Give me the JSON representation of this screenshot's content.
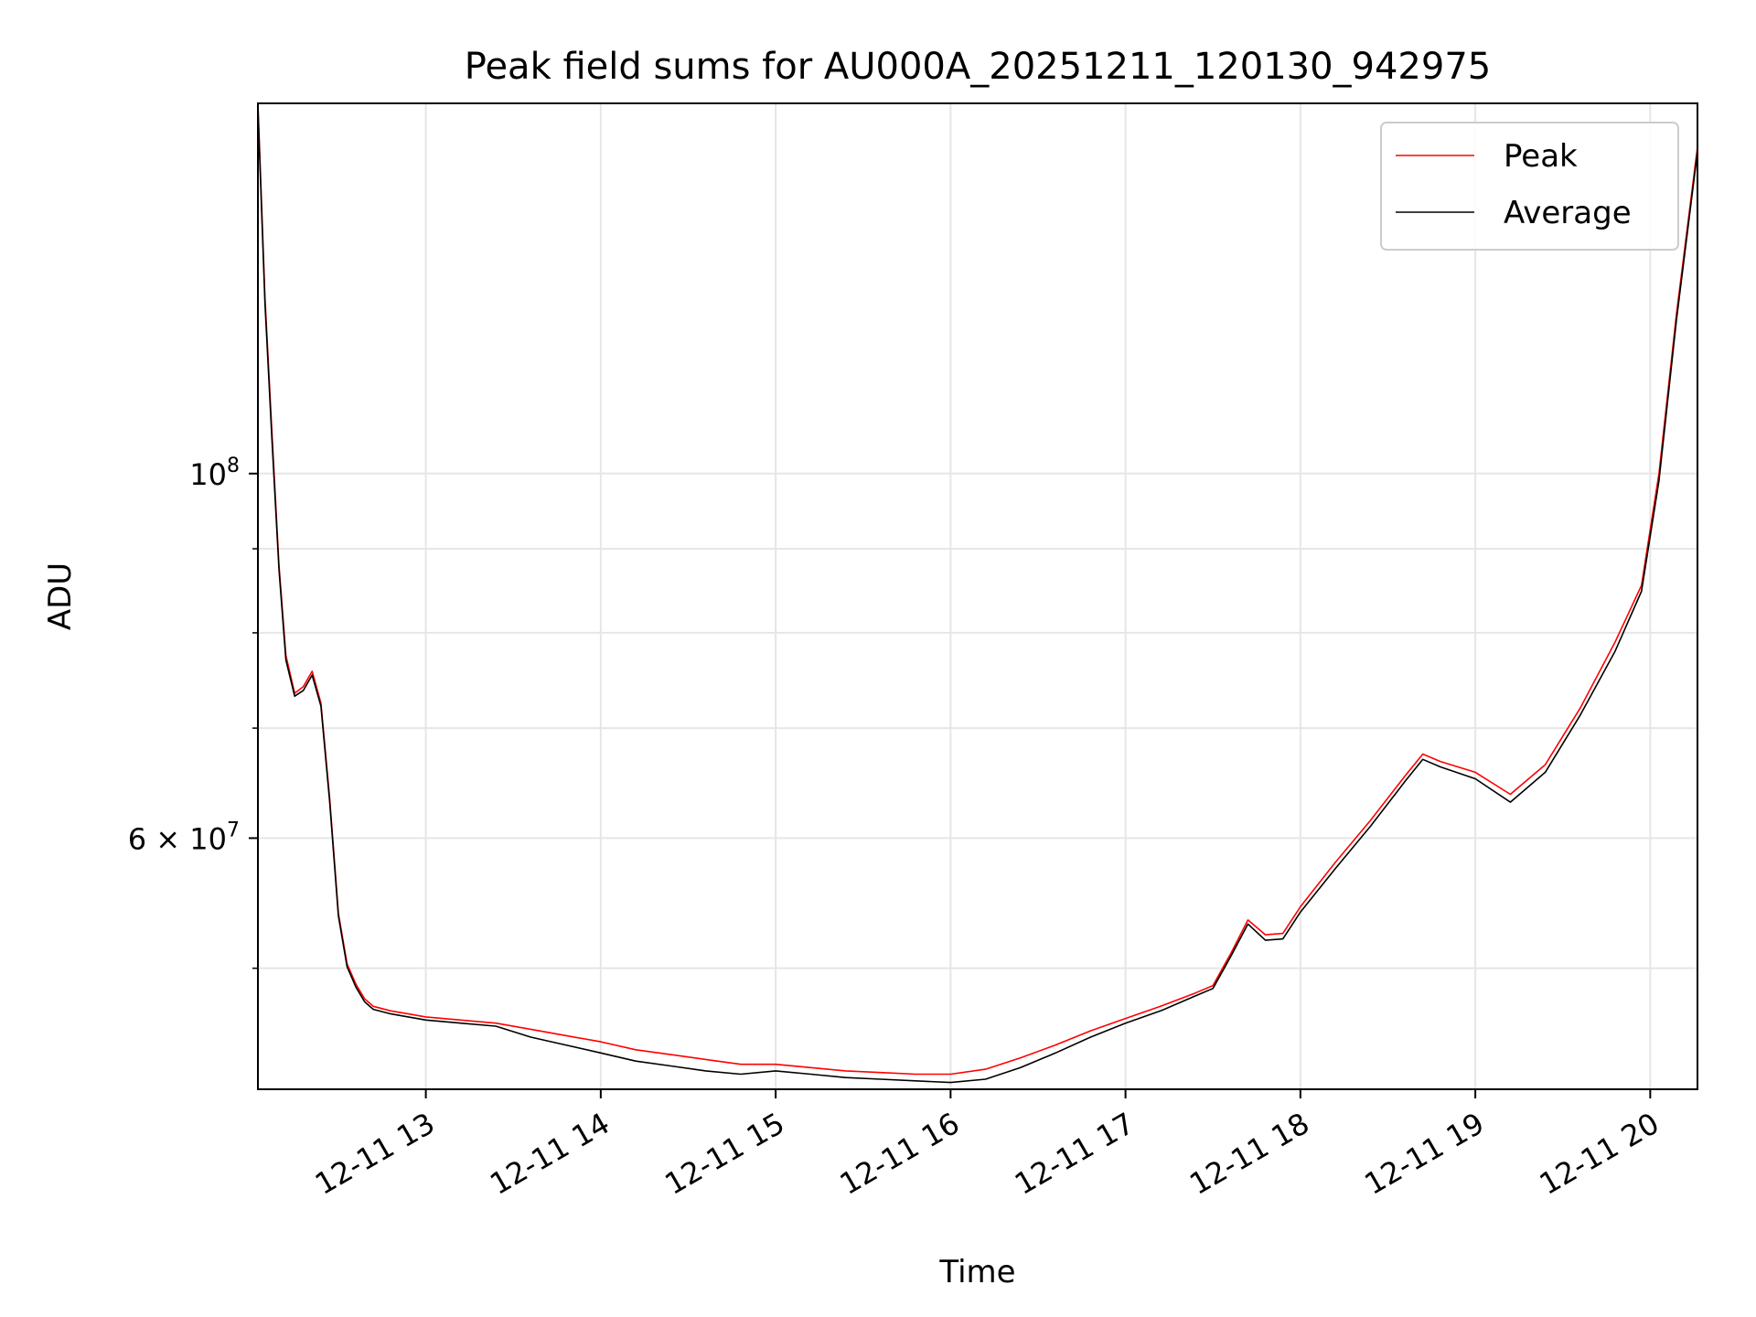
{
  "chart_data": {
    "type": "line",
    "title": "Peak field sums for AU000A_20251211_120130_942975",
    "xlabel": "Time",
    "ylabel": "ADU",
    "y_scale": "log",
    "x_unit": "hours since 12-11 00:00",
    "xlim": [
      12.04,
      20.27
    ],
    "ylim": [
      42200000,
      168000000
    ],
    "x_ticks": [
      {
        "value": 13,
        "label": "12-11 13"
      },
      {
        "value": 14,
        "label": "12-11 14"
      },
      {
        "value": 15,
        "label": "12-11 15"
      },
      {
        "value": 16,
        "label": "12-11 16"
      },
      {
        "value": 17,
        "label": "12-11 17"
      },
      {
        "value": 18,
        "label": "12-11 18"
      },
      {
        "value": 19,
        "label": "12-11 19"
      },
      {
        "value": 20,
        "label": "12-11 20"
      }
    ],
    "y_major_ticks": [
      {
        "value": 100000000,
        "base": "10",
        "exp": "8",
        "label": ""
      },
      {
        "value": 60000000,
        "base": "6 × 10",
        "exp": "7",
        "label": ""
      }
    ],
    "y_minor_ticks": [
      50000000,
      70000000,
      80000000,
      90000000
    ],
    "grid": true,
    "legend": "top-right",
    "series": [
      {
        "name": "Peak",
        "color": "#ff0000",
        "x": [
          12.04,
          12.08,
          12.12,
          12.16,
          12.2,
          12.25,
          12.3,
          12.35,
          12.4,
          12.45,
          12.5,
          12.55,
          12.6,
          12.65,
          12.7,
          12.8,
          12.9,
          13.0,
          13.2,
          13.4,
          13.6,
          13.8,
          14.0,
          14.2,
          14.4,
          14.6,
          14.8,
          15.0,
          15.2,
          15.4,
          15.6,
          15.8,
          16.0,
          16.2,
          16.4,
          16.6,
          16.8,
          17.0,
          17.2,
          17.4,
          17.5,
          17.6,
          17.7,
          17.8,
          17.9,
          18.0,
          18.2,
          18.4,
          18.6,
          18.7,
          18.8,
          19.0,
          19.2,
          19.4,
          19.6,
          19.8,
          19.95,
          20.05,
          20.15,
          20.27
        ],
        "y": [
          168000000,
          128000000,
          106000000,
          88000000,
          77500000,
          73500000,
          74200000,
          75800000,
          72500000,
          63500000,
          54000000,
          50300000,
          48900000,
          47900000,
          47400000,
          47100000,
          46900000,
          46700000,
          46500000,
          46300000,
          45900000,
          45500000,
          45100000,
          44600000,
          44300000,
          44000000,
          43700000,
          43700000,
          43500000,
          43300000,
          43200000,
          43100000,
          43100000,
          43400000,
          44100000,
          44900000,
          45800000,
          46600000,
          47400000,
          48300000,
          48800000,
          51000000,
          53500000,
          52400000,
          52500000,
          54500000,
          58000000,
          61500000,
          65500000,
          67500000,
          66800000,
          65800000,
          63800000,
          66500000,
          72000000,
          79000000,
          85500000,
          100000000,
          125000000,
          158000000
        ]
      },
      {
        "name": "Average",
        "color": "#000000",
        "x": [
          12.04,
          12.08,
          12.12,
          12.16,
          12.2,
          12.25,
          12.3,
          12.35,
          12.4,
          12.45,
          12.5,
          12.55,
          12.6,
          12.65,
          12.7,
          12.8,
          12.9,
          13.0,
          13.2,
          13.4,
          13.6,
          13.8,
          14.0,
          14.2,
          14.4,
          14.6,
          14.8,
          15.0,
          15.2,
          15.4,
          15.6,
          15.8,
          16.0,
          16.2,
          16.4,
          16.6,
          16.8,
          17.0,
          17.2,
          17.4,
          17.5,
          17.6,
          17.7,
          17.8,
          17.9,
          18.0,
          18.2,
          18.4,
          18.6,
          18.7,
          18.8,
          19.0,
          19.2,
          19.4,
          19.6,
          19.8,
          19.95,
          20.05,
          20.15,
          20.27
        ],
        "y": [
          167000000,
          127000000,
          105000000,
          87500000,
          77000000,
          73200000,
          73800000,
          75400000,
          72200000,
          63200000,
          53800000,
          50100000,
          48700000,
          47700000,
          47200000,
          46900000,
          46700000,
          46500000,
          46300000,
          46100000,
          45400000,
          44900000,
          44400000,
          43900000,
          43600000,
          43300000,
          43100000,
          43300000,
          43100000,
          42900000,
          42800000,
          42700000,
          42600000,
          42800000,
          43500000,
          44400000,
          45400000,
          46300000,
          47100000,
          48100000,
          48600000,
          50800000,
          53200000,
          52000000,
          52100000,
          54100000,
          57500000,
          61000000,
          65000000,
          67000000,
          66300000,
          65200000,
          63100000,
          65800000,
          71300000,
          78000000,
          84800000,
          99000000,
          124000000,
          157000000
        ]
      }
    ]
  }
}
